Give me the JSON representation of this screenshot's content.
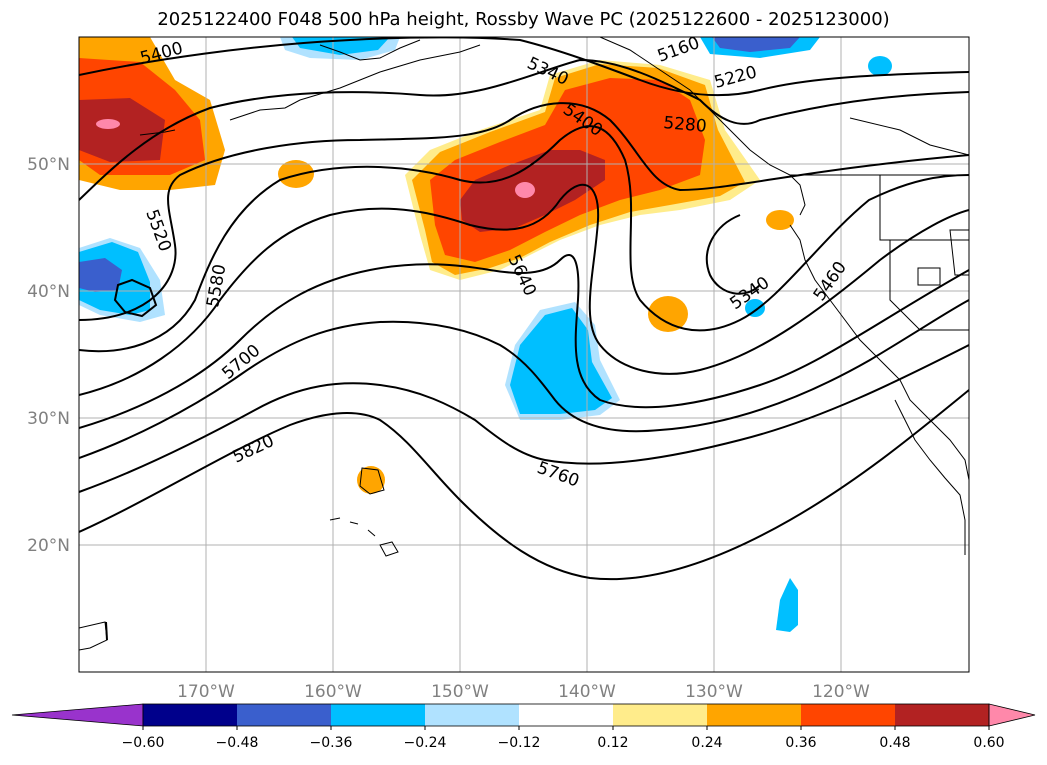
{
  "title": "2025122400 F048 500 hPa height, Rossby Wave PC (2025122600 - 2025123000)",
  "map": {
    "lon_labels": [
      "170°W",
      "160°W",
      "150°W",
      "140°W",
      "130°W",
      "120°W"
    ],
    "lat_labels": [
      "50°N",
      "40°N",
      "30°N",
      "20°N"
    ],
    "contour_labels": [
      "5400",
      "5340",
      "5160",
      "5220",
      "5400",
      "5280",
      "5520",
      "5580",
      "5640",
      "5700",
      "5340",
      "5460",
      "5820",
      "5760"
    ],
    "colors": {
      "land_line": "#000000",
      "gridline": "#b0b0b0",
      "height_contour": "#000000"
    }
  },
  "colorbar": {
    "levels": [
      "-0.60",
      "-0.48",
      "-0.36",
      "-0.24",
      "-0.12",
      "0.12",
      "0.24",
      "0.36",
      "0.48",
      "0.60"
    ],
    "colors": [
      "#9933cc",
      "#00008b",
      "#3a5fcd",
      "#00bfff",
      "#b0e2ff",
      "#ffffff",
      "#ffec8b",
      "#ffa500",
      "#ff4500",
      "#b22222",
      "#ff88aa"
    ]
  }
}
